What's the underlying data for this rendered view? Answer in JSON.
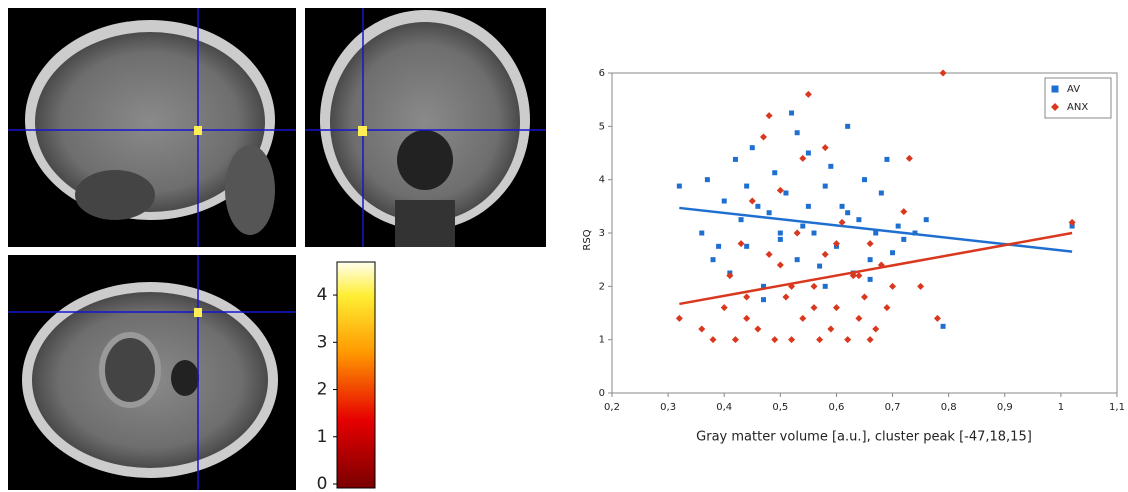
{
  "chart_data": [
    {
      "type": "scatter",
      "xlabel": "Gray matter volume [a.u.], cluster peak [-47,18,15]",
      "ylabel": "RSQ",
      "xlim": [
        0.2,
        1.1
      ],
      "xticks": [
        {
          "value": 0.2,
          "label": "0,2"
        },
        {
          "value": 0.3,
          "label": "0,3"
        },
        {
          "value": 0.4,
          "label": "0,4"
        },
        {
          "value": 0.5,
          "label": "0,5"
        },
        {
          "value": 0.6,
          "label": "0,6"
        },
        {
          "value": 0.7,
          "label": "0,7"
        },
        {
          "value": 0.8,
          "label": "0,8"
        },
        {
          "value": 0.9,
          "label": "0,9"
        },
        {
          "value": 1,
          "label": "1"
        },
        {
          "value": 1.1,
          "label": "1,1"
        }
      ],
      "ylim": [
        0,
        6
      ],
      "yticks": [
        0,
        1,
        2,
        3,
        4,
        5,
        6
      ],
      "legend": "upper right",
      "series": [
        {
          "name": "AV",
          "color": "#1f6fd1",
          "marker": "square",
          "x": [
            0.32,
            0.36,
            0.37,
            0.38,
            0.4,
            0.41,
            0.42,
            0.43,
            0.44,
            0.45,
            0.46,
            0.47,
            0.48,
            0.49,
            0.5,
            0.51,
            0.52,
            0.53,
            0.54,
            0.55,
            0.56,
            0.57,
            0.58,
            0.59,
            0.6,
            0.61,
            0.62,
            0.63,
            0.64,
            0.65,
            0.66,
            0.67,
            0.68,
            0.69,
            0.7,
            0.71,
            0.72,
            0.74,
            0.76,
            0.79,
            1.02,
            0.47,
            0.53,
            0.58,
            0.44,
            0.5,
            0.55,
            0.62,
            0.66,
            0.39
          ],
          "values": [
            3.88,
            3.0,
            4.0,
            2.5,
            3.6,
            2.25,
            4.38,
            3.25,
            2.75,
            4.6,
            3.5,
            2.0,
            3.38,
            4.13,
            2.88,
            3.75,
            5.25,
            2.5,
            3.13,
            4.5,
            3.0,
            2.38,
            3.88,
            4.25,
            2.75,
            3.5,
            5.0,
            2.25,
            3.25,
            4.0,
            2.5,
            3.0,
            3.75,
            4.38,
            2.63,
            3.13,
            2.88,
            3.0,
            3.25,
            1.25,
            3.13,
            1.75,
            4.88,
            2.0,
            3.88,
            3.0,
            3.5,
            3.38,
            2.13,
            2.75
          ],
          "trend": {
            "x": [
              0.32,
              1.02
            ],
            "y": [
              3.47,
              2.65
            ]
          }
        },
        {
          "name": "ANX",
          "color": "#d9381e",
          "marker": "diamond",
          "x": [
            0.32,
            0.36,
            0.38,
            0.4,
            0.41,
            0.42,
            0.43,
            0.44,
            0.45,
            0.46,
            0.47,
            0.48,
            0.49,
            0.5,
            0.51,
            0.52,
            0.53,
            0.54,
            0.55,
            0.56,
            0.57,
            0.58,
            0.59,
            0.6,
            0.61,
            0.62,
            0.63,
            0.64,
            0.65,
            0.66,
            0.67,
            0.68,
            0.69,
            0.7,
            0.72,
            0.73,
            0.75,
            0.78,
            0.79,
            1.02,
            0.5,
            0.54,
            0.58,
            0.6,
            0.64,
            0.44,
            0.52,
            0.56,
            0.66,
            0.48
          ],
          "values": [
            1.4,
            1.2,
            1.0,
            1.6,
            2.2,
            1.0,
            2.8,
            1.4,
            3.6,
            1.2,
            4.8,
            5.2,
            1.0,
            2.4,
            1.8,
            1.0,
            3.0,
            1.4,
            5.6,
            2.0,
            1.0,
            2.6,
            1.2,
            1.6,
            3.2,
            1.0,
            2.2,
            1.4,
            1.8,
            2.8,
            1.2,
            2.4,
            1.6,
            2.0,
            3.4,
            4.4,
            2.0,
            1.4,
            6.0,
            3.2,
            3.8,
            4.4,
            4.6,
            2.8,
            2.2,
            1.8,
            2.0,
            1.6,
            1.0,
            2.6
          ],
          "trend": {
            "x": [
              0.32,
              1.02
            ],
            "y": [
              1.67,
              3.0
            ]
          }
        }
      ]
    },
    {
      "type": "colorbar",
      "ylim": [
        0,
        4.7
      ],
      "yticks": [
        0,
        1,
        2,
        3,
        4
      ]
    }
  ]
}
